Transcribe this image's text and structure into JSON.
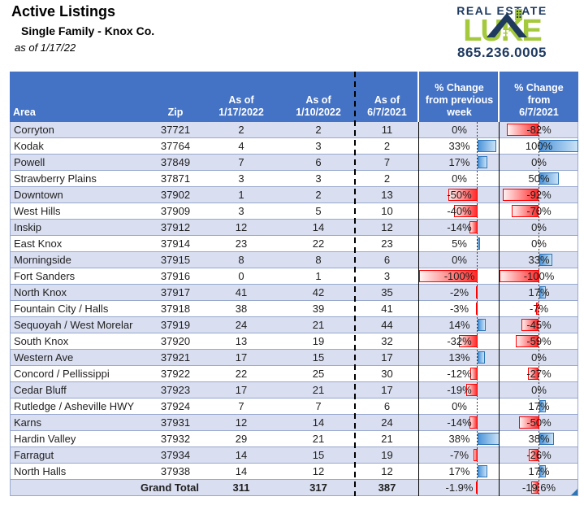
{
  "title": "Active Listings",
  "subtitle": "Single Family - Knox Co.",
  "as_of": "as of 1/17/22",
  "logo": {
    "line1": "REAL ESTATE",
    "name": "LUKE",
    "phone": "865.236.0005",
    "navy": "#1E3A5F",
    "green": "#A5C93D"
  },
  "colors": {
    "header_bg": "#4472C4",
    "alt_row": "#D9DEF0",
    "row_border": "#98A9CE",
    "bar_negative_border": "#FF0000",
    "bar_positive_border": "#2E75B6"
  },
  "table": {
    "columns": [
      "Area",
      "Zip",
      "As of\n1/17/2022",
      "As of\n1/10/2022",
      "As of\n6/7/2021",
      "% Change\nfrom previous\nweek",
      "% Change\nfrom\n6/7/2021"
    ],
    "rows": [
      {
        "area": "Corryton",
        "zip": "37721",
        "current": "2",
        "prev_week": "2",
        "jun_2021": "11",
        "pct_week": "0%",
        "pct_jun": "-82%"
      },
      {
        "area": "Kodak",
        "zip": "37764",
        "current": "4",
        "prev_week": "3",
        "jun_2021": "2",
        "pct_week": "33%",
        "pct_jun": "100%"
      },
      {
        "area": "Powell",
        "zip": "37849",
        "current": "7",
        "prev_week": "6",
        "jun_2021": "7",
        "pct_week": "17%",
        "pct_jun": "0%"
      },
      {
        "area": "Strawberry Plains",
        "zip": "37871",
        "current": "3",
        "prev_week": "3",
        "jun_2021": "2",
        "pct_week": "0%",
        "pct_jun": "50%"
      },
      {
        "area": "Downtown",
        "zip": "37902",
        "current": "1",
        "prev_week": "2",
        "jun_2021": "13",
        "pct_week": "-50%",
        "pct_jun": "-92%"
      },
      {
        "area": "West Hills",
        "zip": "37909",
        "current": "3",
        "prev_week": "5",
        "jun_2021": "10",
        "pct_week": "-40%",
        "pct_jun": "-70%"
      },
      {
        "area": "Inskip",
        "zip": "37912",
        "current": "12",
        "prev_week": "14",
        "jun_2021": "12",
        "pct_week": "-14%",
        "pct_jun": "0%"
      },
      {
        "area": "East Knox",
        "zip": "37914",
        "current": "23",
        "prev_week": "22",
        "jun_2021": "23",
        "pct_week": "5%",
        "pct_jun": "0%"
      },
      {
        "area": "Morningside",
        "zip": "37915",
        "current": "8",
        "prev_week": "8",
        "jun_2021": "6",
        "pct_week": "0%",
        "pct_jun": "33%"
      },
      {
        "area": "Fort Sanders",
        "zip": "37916",
        "current": "0",
        "prev_week": "1",
        "jun_2021": "3",
        "pct_week": "-100%",
        "pct_jun": "-100%"
      },
      {
        "area": "North Knox",
        "zip": "37917",
        "current": "41",
        "prev_week": "42",
        "jun_2021": "35",
        "pct_week": "-2%",
        "pct_jun": "17%"
      },
      {
        "area": "Fountain City / Halls",
        "zip": "37918",
        "current": "38",
        "prev_week": "39",
        "jun_2021": "41",
        "pct_week": "-3%",
        "pct_jun": "-7%"
      },
      {
        "area": "Sequoyah / West Morelar",
        "zip": "37919",
        "current": "24",
        "prev_week": "21",
        "jun_2021": "44",
        "pct_week": "14%",
        "pct_jun": "-45%"
      },
      {
        "area": "South Knox",
        "zip": "37920",
        "current": "13",
        "prev_week": "19",
        "jun_2021": "32",
        "pct_week": "-32%",
        "pct_jun": "-59%"
      },
      {
        "area": "Western Ave",
        "zip": "37921",
        "current": "17",
        "prev_week": "15",
        "jun_2021": "17",
        "pct_week": "13%",
        "pct_jun": "0%"
      },
      {
        "area": "Concord / Pellissippi",
        "zip": "37922",
        "current": "22",
        "prev_week": "25",
        "jun_2021": "30",
        "pct_week": "-12%",
        "pct_jun": "-27%"
      },
      {
        "area": "Cedar Bluff",
        "zip": "37923",
        "current": "17",
        "prev_week": "21",
        "jun_2021": "17",
        "pct_week": "-19%",
        "pct_jun": "0%"
      },
      {
        "area": "Rutledge / Asheville HWY",
        "zip": "37924",
        "current": "7",
        "prev_week": "7",
        "jun_2021": "6",
        "pct_week": "0%",
        "pct_jun": "17%"
      },
      {
        "area": "Karns",
        "zip": "37931",
        "current": "12",
        "prev_week": "14",
        "jun_2021": "24",
        "pct_week": "-14%",
        "pct_jun": "-50%"
      },
      {
        "area": "Hardin Valley",
        "zip": "37932",
        "current": "29",
        "prev_week": "21",
        "jun_2021": "21",
        "pct_week": "38%",
        "pct_jun": "38%"
      },
      {
        "area": "Farragut",
        "zip": "37934",
        "current": "14",
        "prev_week": "15",
        "jun_2021": "19",
        "pct_week": "-7%",
        "pct_jun": "-26%"
      },
      {
        "area": "North Halls",
        "zip": "37938",
        "current": "14",
        "prev_week": "12",
        "jun_2021": "12",
        "pct_week": "17%",
        "pct_jun": "17%"
      }
    ],
    "grand_total": {
      "label": "Grand Total",
      "current": "311",
      "prev_week": "317",
      "jun_2021": "387",
      "pct_week": "-1.9%",
      "pct_jun": "-19.6%"
    }
  }
}
